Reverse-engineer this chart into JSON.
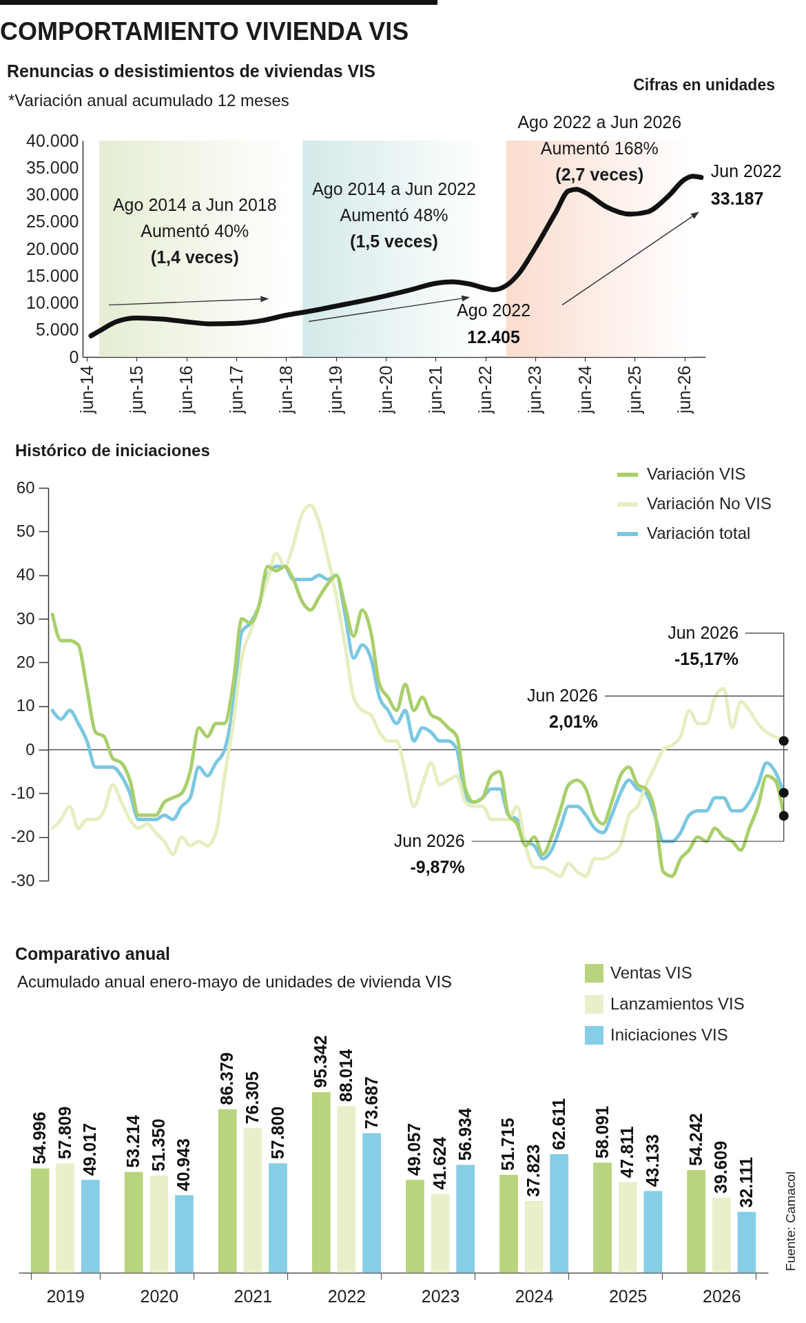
{
  "chart_data": [
    {
      "type": "other",
      "title": "COMPORTAMIENTO VIVIENDA VIS"
    },
    {
      "type": "line",
      "title": "Renuncias o desistimientos de viviendas VIS",
      "subtitle": "*Variación anual acumulado 12 meses",
      "x": [
        "2014-07",
        "2014-09",
        "2015-01",
        "2015-06",
        "2015-12",
        "2016-06",
        "2016-12",
        "2017-06",
        "2017-12",
        "2018-06",
        "2018-12",
        "2019-06",
        "2019-12",
        "2020-06",
        "2020-12",
        "2021-06",
        "2021-10",
        "2022-02",
        "2022-06",
        "2022-08",
        "2022-11",
        "2023-02",
        "2023-06",
        "2023-11",
        "2024-02",
        "2024-04",
        "2024-06",
        "2024-11",
        "2025-05",
        "2025-09",
        "2026-02",
        "2026-06",
        "2026-08",
        "2026-10"
      ],
      "values": [
        3900,
        4800,
        6500,
        7200,
        7000,
        6500,
        6100,
        6200,
        6700,
        7700,
        8500,
        9400,
        10300,
        11300,
        12400,
        13600,
        13900,
        13500,
        12700,
        12405,
        13200,
        15400,
        20100,
        26800,
        30700,
        31000,
        30400,
        27800,
        26400,
        26800,
        29700,
        32800,
        33400,
        33187
      ],
      "color": "#111111",
      "xlim": [
        "2014-05",
        "2026-11"
      ],
      "xticks": [
        {
          "value": "2014-06",
          "label": "jun-14"
        },
        {
          "value": "2015-06",
          "label": "jun-15"
        },
        {
          "value": "2016-06",
          "label": "jun-16"
        },
        {
          "value": "2017-06",
          "label": "jun-17"
        },
        {
          "value": "2018-06",
          "label": "jun-18"
        },
        {
          "value": "2019-06",
          "label": "jun-19"
        },
        {
          "value": "2020-06",
          "label": "jun-20"
        },
        {
          "value": "2021-06",
          "label": "jun-21"
        },
        {
          "value": "2022-06",
          "label": "jun-22"
        },
        {
          "value": "2023-06",
          "label": "jun-23"
        },
        {
          "value": "2024-06",
          "label": "jun-24"
        },
        {
          "value": "2025-06",
          "label": "jun-25"
        },
        {
          "value": "2026-06",
          "label": "jun-26"
        }
      ],
      "ylim": [
        0,
        40000
      ],
      "yticks": [
        0,
        {
          "value": 5000,
          "label": "5.000"
        },
        {
          "value": 10000,
          "label": "10.000"
        },
        {
          "value": 15000,
          "label": "15.000"
        },
        {
          "value": 20000,
          "label": "20.000"
        },
        {
          "value": 25000,
          "label": "25.000"
        },
        {
          "value": 30000,
          "label": "30.000"
        },
        {
          "value": 35000,
          "label": "35.000"
        },
        {
          "value": 40000,
          "label": "40.000"
        }
      ],
      "bands": [
        {
          "axis": "x",
          "from": "2014-09",
          "to": "2018-07",
          "label": "Ago 2014 a Jun 2018\nAumentó 40%\n(1,4 veces)",
          "color": "#e5edd3"
        },
        {
          "axis": "x",
          "from": "2018-10",
          "to": "2022-06",
          "label": "Ago 2014 a Jun 2022\nAumentó 48%\n(1,5 veces)",
          "color": "#d4e9e9"
        },
        {
          "axis": "x",
          "from": "2022-11",
          "to": "2026-08",
          "label": "Ago 2022 a Jun 2026\nAumentó 168%\n(2,7 veces)",
          "color": "#fbdccf"
        }
      ],
      "annotations": [
        "Cifras en unidades",
        {
          "text": "Ago 2022\n12.405",
          "x": "2022-08",
          "y": 12405
        },
        {
          "text": "Jun 2022\n33.187",
          "x": "2026-10",
          "y": 33187
        }
      ],
      "grid": false,
      "marker": "none",
      "line_style": "solid"
    },
    {
      "type": "line",
      "title": "Histórico de iniciaciones",
      "categories": [
        null,
        null,
        null,
        null,
        null,
        null,
        null,
        null,
        null,
        null,
        null,
        null,
        null,
        null,
        null,
        null,
        null,
        null,
        null,
        null,
        null,
        null,
        null,
        null,
        null,
        null,
        null,
        null,
        null,
        null,
        null,
        null,
        null,
        null,
        null,
        null,
        null,
        null,
        null,
        null,
        null,
        null,
        null,
        null,
        null,
        null,
        null,
        null,
        null,
        null,
        null,
        null,
        null,
        null,
        null,
        null,
        null,
        null,
        null,
        null,
        null,
        null,
        null,
        null,
        null,
        null,
        null,
        null,
        null,
        null,
        null,
        null,
        null,
        null,
        null,
        null,
        null,
        null,
        null,
        null,
        null,
        null,
        null,
        null,
        null,
        null
      ],
      "series": [
        {
          "name": "Variación VIS",
          "color": "#a9cf6b",
          "values": [
            31,
            25,
            25,
            24,
            14,
            4,
            3,
            -2,
            -3,
            -7,
            -15,
            -15,
            -15,
            -12,
            -11,
            -10,
            -5,
            5,
            3,
            6,
            6,
            15,
            30,
            29,
            33,
            42,
            41,
            42,
            39,
            34,
            32,
            35,
            38,
            40,
            33,
            26,
            32,
            27,
            15,
            12,
            9,
            15,
            9,
            12,
            8,
            7,
            5,
            3,
            -9,
            -12,
            -11,
            -6,
            -5,
            -15,
            -17,
            -22,
            -20,
            -24,
            -20,
            -14,
            -8,
            -7,
            -9,
            -15,
            -17,
            -12,
            -6,
            -4,
            -8,
            -9,
            -14,
            -28,
            -29,
            -25,
            -23,
            -20,
            -21,
            -18,
            -20,
            -21,
            -23,
            -18,
            -13,
            -6,
            -7,
            -15.17
          ]
        },
        {
          "name": "Variación No VIS",
          "color": "#e5eec0",
          "values": [
            -18,
            -16,
            -13,
            -18,
            -16,
            -16,
            -14,
            -8,
            -12,
            -16,
            -18,
            -17,
            -19,
            -21,
            -24,
            -20,
            -22,
            -21,
            -22,
            -19,
            -6,
            6,
            21,
            27,
            33,
            39,
            45,
            42,
            47,
            54,
            56,
            52,
            44,
            35,
            24,
            12,
            9,
            8,
            4,
            2,
            2,
            -5,
            -13,
            -8,
            -3,
            -8,
            -7,
            -6,
            -12,
            -13,
            -13,
            -16,
            -16,
            -16,
            -13,
            -22,
            -27,
            -27,
            -28,
            -29,
            -26,
            -28,
            -29,
            -25,
            -25,
            -24,
            -22,
            -15,
            -13,
            -8,
            -4,
            0,
            1,
            3,
            9,
            6,
            6,
            12,
            14,
            5,
            11,
            9,
            6,
            4,
            3,
            2.01
          ]
        },
        {
          "name": "Variación total",
          "color": "#7bc7e2",
          "values": [
            9,
            7,
            9,
            6,
            2,
            -4,
            -4,
            -4,
            -6,
            -10,
            -16,
            -16,
            -16,
            -15,
            -16,
            -13,
            -11,
            -4,
            -6,
            -3,
            0,
            10,
            27,
            29,
            33,
            40,
            42,
            42,
            39,
            39,
            39,
            40,
            39,
            40,
            31,
            21,
            24,
            21,
            12,
            9,
            6,
            9,
            2,
            5,
            4,
            2,
            2,
            0,
            -11,
            -12,
            -11,
            -9,
            -9,
            -15,
            -16,
            -21,
            -22,
            -25,
            -23,
            -18,
            -13,
            -13,
            -15,
            -18,
            -19,
            -15,
            -10,
            -7,
            -9,
            -10,
            -15,
            -21,
            -21,
            -19,
            -15,
            -14,
            -14,
            -11,
            -11,
            -14,
            -14,
            -12,
            -8,
            -3,
            -5,
            -9.87
          ]
        }
      ],
      "ylim": [
        -30,
        60
      ],
      "yticks": [
        -30,
        -20,
        -10,
        0,
        10,
        20,
        30,
        40,
        50,
        60
      ],
      "ref_lines": [
        {
          "axis": "y",
          "value": 0,
          "color": "#555555"
        }
      ],
      "annotations": [
        "Jun 2026\n-15,17%",
        "Jun 2026\n2,01%",
        "Jun 2026\n-9,87%"
      ],
      "legend": "top right",
      "grid": false,
      "marker": "none",
      "line_style": "solid"
    },
    {
      "type": "bar",
      "title": "Comparativo anual",
      "subtitle": "Acumulado anual enero-mayo de unidades de vivienda VIS",
      "categories": [
        "2019",
        "2020",
        "2021",
        "2022",
        "2023",
        "2024",
        "2025",
        "2026"
      ],
      "series": [
        {
          "name": "Ventas VIS",
          "color": "#b9d47e",
          "values": [
            54996,
            53214,
            86379,
            95342,
            49057,
            51715,
            58091,
            54242
          ],
          "value_labels": [
            "54.996",
            "53.214",
            "86.379",
            "95.342",
            "49.057",
            "51.715",
            "58.091",
            "54.242"
          ]
        },
        {
          "name": "Lanzamientos VIS",
          "color": "#e9efca",
          "values": [
            57809,
            51350,
            76305,
            88014,
            41624,
            37823,
            47811,
            39609
          ],
          "value_labels": [
            "57.809",
            "51.350",
            "76.305",
            "88.014",
            "41.624",
            "37.823",
            "47.811",
            "39.609"
          ]
        },
        {
          "name": "Iniciaciones VIS",
          "color": "#86cde6",
          "values": [
            49017,
            40943,
            57800,
            73687,
            56934,
            62611,
            43133,
            32111
          ],
          "value_labels": [
            "49.017",
            "40.943",
            "57.800",
            "73.687",
            "56.934",
            "62.611",
            "43.133",
            "32.111"
          ]
        }
      ],
      "annotations": [
        "Fuente: Camacol"
      ],
      "legend": "top right",
      "grid": false
    }
  ]
}
